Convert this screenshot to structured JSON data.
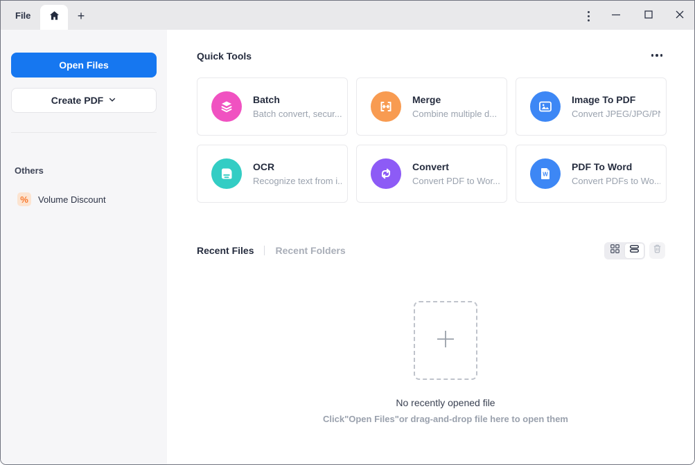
{
  "window": {
    "menu_file": "File",
    "active_tab": "home",
    "icons": [
      "home-icon",
      "new-tab-plus-icon",
      "kebab-menu-icon",
      "minimize-icon",
      "maximize-icon",
      "close-icon"
    ]
  },
  "sidebar": {
    "open_files_label": "Open Files",
    "create_pdf_label": "Create PDF",
    "others_label": "Others",
    "items": [
      {
        "label": "Volume Discount",
        "icon": "percent-icon",
        "icon_glyph": "%",
        "icon_color": "#f8772c",
        "icon_bg": "#fce4d1"
      }
    ],
    "accent_color": "#1677f0"
  },
  "quick_tools": {
    "title": "Quick Tools",
    "more_icon": "ellipsis-icon",
    "cards": [
      {
        "title": "Batch",
        "subtitle": "Batch convert, secur...",
        "icon": "layers-icon",
        "color": "#f052c1"
      },
      {
        "title": "Merge",
        "subtitle": "Combine multiple d...",
        "icon": "merge-icon",
        "color": "#f89b51"
      },
      {
        "title": "Image To PDF",
        "subtitle": "Convert JPEG/JPG/PN...",
        "icon": "image-icon",
        "color": "#3d87f5"
      },
      {
        "title": "OCR",
        "subtitle": "Recognize text from i...",
        "icon": "ocr-document-icon",
        "color": "#33cdc4"
      },
      {
        "title": "Convert",
        "subtitle": "Convert PDF to Wor...",
        "icon": "convert-cycle-icon",
        "color": "#8d5bf6"
      },
      {
        "title": "PDF To Word",
        "subtitle": "Convert PDFs to Wo...",
        "icon": "word-doc-icon",
        "color": "#3d87f5"
      }
    ]
  },
  "recent": {
    "tab_files": "Recent Files",
    "tab_folders": "Recent Folders",
    "view_icons": [
      "grid-view-icon",
      "list-view-icon",
      "trash-icon"
    ],
    "selected_view": "list",
    "empty_title": "No recently opened file",
    "empty_hint": "Click\"Open Files\"or drag-and-drop file here to open them",
    "drop_icon": "plus-icon"
  }
}
